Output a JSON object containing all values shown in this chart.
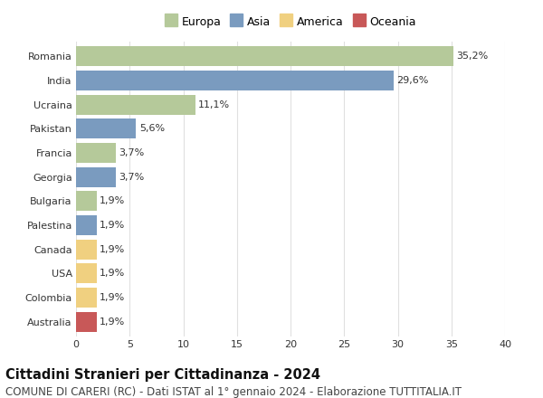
{
  "countries": [
    "Romania",
    "India",
    "Ucraina",
    "Pakistan",
    "Francia",
    "Georgia",
    "Bulgaria",
    "Palestina",
    "Canada",
    "USA",
    "Colombia",
    "Australia"
  ],
  "values": [
    35.2,
    29.6,
    11.1,
    5.6,
    3.7,
    3.7,
    1.9,
    1.9,
    1.9,
    1.9,
    1.9,
    1.9
  ],
  "labels": [
    "35,2%",
    "29,6%",
    "11,1%",
    "5,6%",
    "3,7%",
    "3,7%",
    "1,9%",
    "1,9%",
    "1,9%",
    "1,9%",
    "1,9%",
    "1,9%"
  ],
  "continents": [
    "Europa",
    "Asia",
    "Europa",
    "Asia",
    "Europa",
    "Asia",
    "Europa",
    "Asia",
    "America",
    "America",
    "America",
    "Oceania"
  ],
  "colors": {
    "Europa": "#b5c99a",
    "Asia": "#7a9bbf",
    "America": "#f0d080",
    "Oceania": "#c85858"
  },
  "xlim": [
    0,
    40
  ],
  "xticks": [
    0,
    5,
    10,
    15,
    20,
    25,
    30,
    35,
    40
  ],
  "title": "Cittadini Stranieri per Cittadinanza - 2024",
  "subtitle": "COMUNE DI CARERI (RC) - Dati ISTAT al 1° gennaio 2024 - Elaborazione TUTTITALIA.IT",
  "background_color": "#ffffff",
  "grid_color": "#e0e0e0",
  "bar_height": 0.82,
  "title_fontsize": 10.5,
  "subtitle_fontsize": 8.5,
  "label_fontsize": 8,
  "tick_fontsize": 8,
  "legend_fontsize": 9
}
